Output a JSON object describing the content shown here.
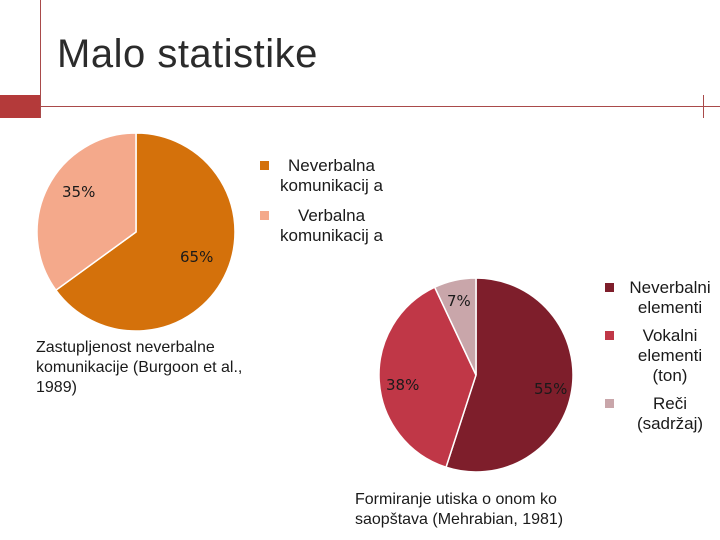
{
  "title": "Malo statistike",
  "colors": {
    "accent": "#b43a3a",
    "chart1": [
      "#d4710b",
      "#f4a98b"
    ],
    "chart2": [
      "#7e1e2b",
      "#c03747",
      "#c9a6aa"
    ]
  },
  "chart_data": [
    {
      "type": "pie",
      "title": "",
      "caption": "Zastupljenost neverbalne komunikacije (Burgoon et al., 1989)",
      "categories": [
        "Neverbalna komunikacij a",
        "Verbalna komunikacij a"
      ],
      "values": [
        65,
        35
      ],
      "labels": [
        "65%",
        "35%"
      ],
      "legend": "right"
    },
    {
      "type": "pie",
      "title": "",
      "caption": "Formiranje utiska o onom ko saopštava (Mehrabian, 1981)",
      "categories": [
        "Neverbalni elementi",
        "Vokalni elementi (ton)",
        "Reči (sadržaj)"
      ],
      "values": [
        55,
        38,
        7
      ],
      "labels": [
        "55%",
        "38%",
        "7%"
      ],
      "legend": "right"
    }
  ]
}
